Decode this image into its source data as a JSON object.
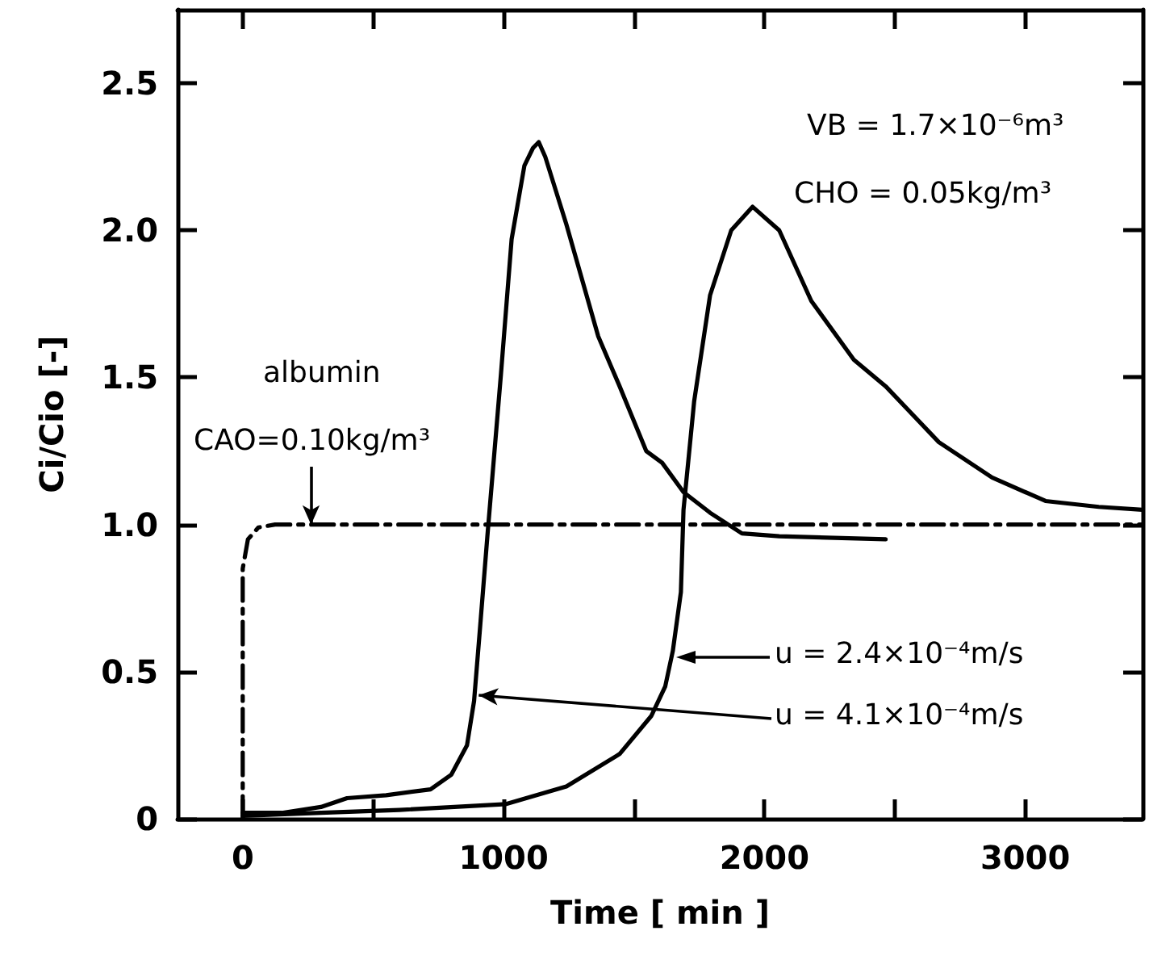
{
  "chart_data": {
    "type": "line",
    "xlabel": "Time [ min ]",
    "ylabel": "Ci/Cio [-]",
    "xlim": [
      -250,
      3450
    ],
    "ylim": [
      0,
      2.75
    ],
    "xticks": [
      0,
      {
        "value": 500,
        "label": null
      },
      1000,
      {
        "value": 1500,
        "label": null
      },
      2000,
      {
        "value": 2500,
        "label": null
      },
      3000
    ],
    "yticks": [
      0,
      0.5,
      {
        "value": 1,
        "label": "1.0"
      },
      1.5,
      {
        "value": 2,
        "label": "2.0"
      },
      2.5
    ],
    "grid": false,
    "marker": "none",
    "series": [
      {
        "color": "#000000",
        "line_style": "dashed",
        "x": [
          0,
          0,
          20,
          60,
          124,
          3450
        ],
        "values": [
          0,
          0.85,
          0.95,
          0.99,
          1.0,
          1.0
        ]
      },
      {
        "color": "#000000",
        "line_style": "solid",
        "x": [
          0,
          150,
          300,
          400,
          550,
          720,
          800,
          860,
          887,
          910,
          938,
          990,
          1031,
          1080,
          1113,
          1135,
          1160,
          1241,
          1363,
          1445,
          1547,
          1608,
          1690,
          1792,
          1914,
          2057,
          2465
        ],
        "values": [
          0.02,
          0.02,
          0.04,
          0.07,
          0.08,
          0.1,
          0.15,
          0.25,
          0.4,
          0.65,
          0.96,
          1.51,
          1.97,
          2.22,
          2.28,
          2.3,
          2.25,
          2.02,
          1.64,
          1.47,
          1.25,
          1.21,
          1.11,
          1.04,
          0.97,
          0.96,
          0.95
        ]
      },
      {
        "color": "#000000",
        "line_style": "solid",
        "x": [
          0,
          300,
          600,
          1010,
          1241,
          1445,
          1567,
          1620,
          1649,
          1680,
          1690,
          1731,
          1792,
          1873,
          1955,
          2057,
          2180,
          2343,
          2465,
          2669,
          2873,
          3078,
          3282,
          3450
        ],
        "values": [
          0.01,
          0.02,
          0.03,
          0.05,
          0.11,
          0.22,
          0.35,
          0.45,
          0.57,
          0.77,
          1.05,
          1.42,
          1.78,
          2.0,
          2.08,
          2.0,
          1.76,
          1.56,
          1.47,
          1.28,
          1.16,
          1.08,
          1.06,
          1.05
        ]
      }
    ],
    "annotations": [
      "VB = 1.7×10⁻⁶m³",
      "CHO = 0.05kg/m³",
      "albumin",
      {
        "text": "CAO=0.10kg/m³",
        "x": 262,
        "y": 1.0
      },
      "u = 2.4×10⁻⁴m/s",
      {
        "text": "u = 4.1×10⁻⁴m/s",
        "x": 905,
        "y": 0.42
      }
    ]
  }
}
